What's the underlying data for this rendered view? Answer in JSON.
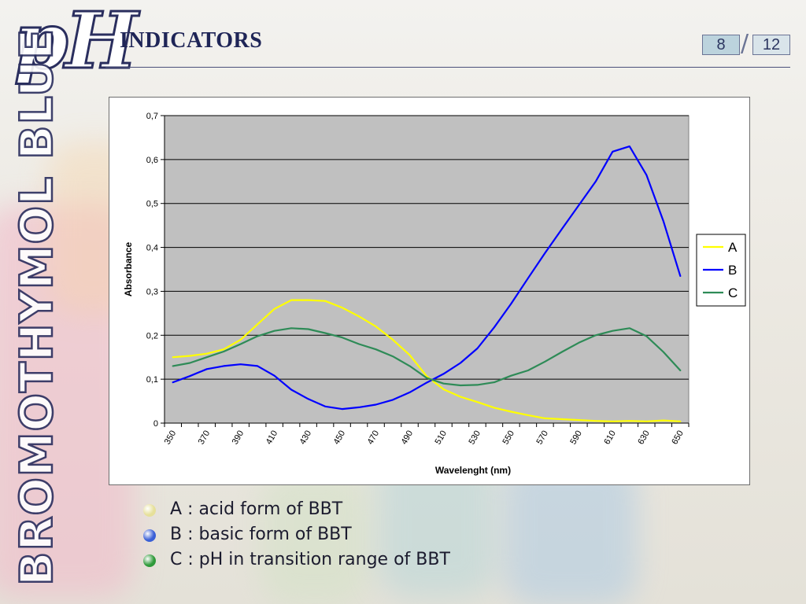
{
  "header": {
    "logo_text": "pH",
    "title": "INDICATORS",
    "page_current": "8",
    "page_separator": "/",
    "page_total": "12"
  },
  "sidebar": {
    "vertical_title": "BROMOTHYMOL BLUE"
  },
  "chart_data": {
    "type": "line",
    "title": "",
    "xlabel": "Wavelenght (nm)",
    "ylabel": "Absorbance",
    "x": [
      350,
      360,
      370,
      380,
      390,
      400,
      410,
      420,
      430,
      440,
      450,
      460,
      470,
      480,
      490,
      500,
      510,
      520,
      530,
      540,
      550,
      560,
      570,
      580,
      590,
      600,
      610,
      620,
      630,
      640,
      650
    ],
    "x_tick_labels": [
      "350",
      "370",
      "390",
      "410",
      "430",
      "450",
      "470",
      "490",
      "510",
      "530",
      "550",
      "570",
      "590",
      "610",
      "630",
      "650"
    ],
    "y_tick_labels": [
      "0",
      "0,1",
      "0,2",
      "0,3",
      "0,4",
      "0,5",
      "0,6",
      "0,7"
    ],
    "xlim": [
      350,
      650
    ],
    "ylim": [
      0,
      0.7
    ],
    "grid": "horizontal",
    "plot_background": "#c0c0c0",
    "legend_position": "right",
    "series": [
      {
        "name": "A",
        "color": "#ffff00",
        "values": [
          0.15,
          0.153,
          0.158,
          0.168,
          0.19,
          0.225,
          0.26,
          0.28,
          0.28,
          0.278,
          0.263,
          0.243,
          0.22,
          0.19,
          0.155,
          0.107,
          0.077,
          0.06,
          0.048,
          0.035,
          0.026,
          0.018,
          0.011,
          0.009,
          0.007,
          0.005,
          0.004,
          0.005,
          0.004,
          0.006,
          0.004
        ]
      },
      {
        "name": "B",
        "color": "#0000ff",
        "values": [
          0.093,
          0.107,
          0.123,
          0.13,
          0.134,
          0.13,
          0.108,
          0.076,
          0.055,
          0.038,
          0.032,
          0.036,
          0.042,
          0.053,
          0.07,
          0.092,
          0.112,
          0.137,
          0.17,
          0.218,
          0.272,
          0.33,
          0.387,
          0.442,
          0.496,
          0.55,
          0.618,
          0.63,
          0.565,
          0.46,
          0.335
        ]
      },
      {
        "name": "C",
        "color": "#2e8b57",
        "values": [
          0.13,
          0.137,
          0.15,
          0.163,
          0.18,
          0.198,
          0.21,
          0.216,
          0.214,
          0.205,
          0.195,
          0.18,
          0.168,
          0.152,
          0.13,
          0.103,
          0.09,
          0.086,
          0.087,
          0.093,
          0.108,
          0.12,
          0.14,
          0.162,
          0.183,
          0.2,
          0.21,
          0.216,
          0.198,
          0.162,
          0.12
        ]
      }
    ]
  },
  "notes": [
    {
      "text": "A : acid form of BBT",
      "bullet_color": "#e6e09a"
    },
    {
      "text": "B : basic form of BBT",
      "bullet_color": "#3a5fd6"
    },
    {
      "text": "C : pH in transition range of BBT",
      "bullet_color": "#2f9a3a"
    }
  ]
}
